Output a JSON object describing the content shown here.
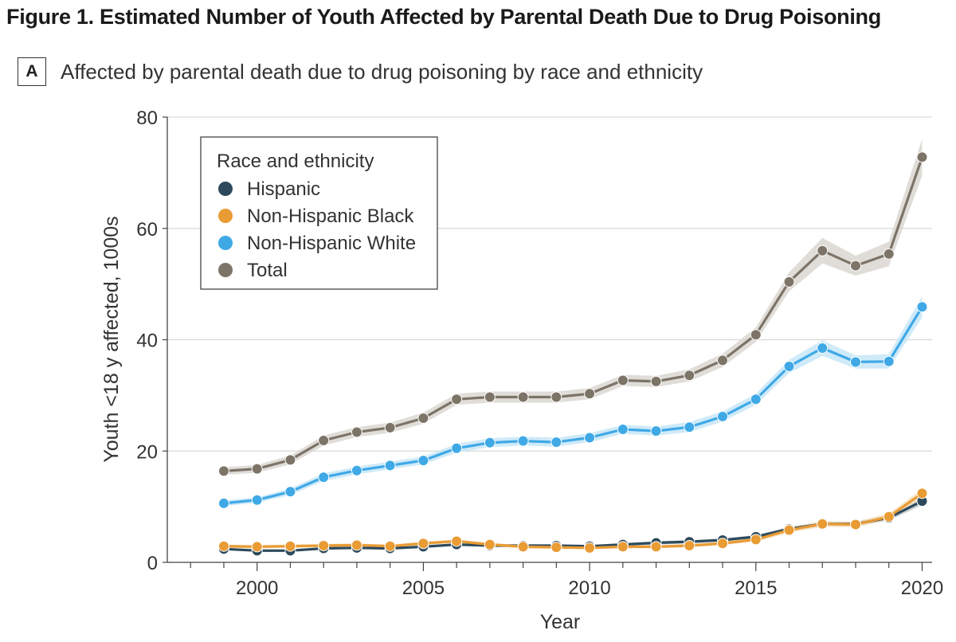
{
  "figure": {
    "title": "Figure 1.  Estimated Number of Youth Affected by Parental Death Due to Drug Poisoning",
    "panel_label": "A",
    "panel_title": "Affected by parental death due to drug poisoning by race and ethnicity"
  },
  "chart_data": {
    "type": "line",
    "xlabel": "Year",
    "ylabel": "Youth <18 y affected, 1000s",
    "xlim": [
      1997.3,
      2020.3
    ],
    "ylim": [
      0,
      80
    ],
    "x_ticks": [
      2000,
      2005,
      2010,
      2015,
      2020
    ],
    "y_ticks": [
      0,
      20,
      40,
      60,
      80
    ],
    "grid": "horizontal",
    "legend_title": "Race and ethnicity",
    "legend_position": "top-left",
    "x": [
      1999,
      2000,
      2001,
      2002,
      2003,
      2004,
      2005,
      2006,
      2007,
      2008,
      2009,
      2010,
      2011,
      2012,
      2013,
      2014,
      2015,
      2016,
      2017,
      2018,
      2019,
      2020
    ],
    "series": [
      {
        "name": "Total",
        "color": "#7d7468",
        "band_color": "#d6d2cc",
        "values": [
          16.4,
          16.8,
          18.4,
          21.9,
          23.4,
          24.2,
          25.9,
          29.3,
          29.7,
          29.7,
          29.7,
          30.3,
          32.7,
          32.5,
          33.6,
          36.3,
          40.9,
          50.4,
          56.0,
          53.3,
          55.4,
          72.8
        ],
        "band": [
          0.7,
          0.7,
          0.8,
          0.9,
          0.9,
          0.9,
          1.0,
          1.0,
          1.0,
          1.0,
          1.0,
          1.0,
          1.0,
          1.0,
          1.1,
          1.2,
          1.3,
          1.7,
          2.3,
          1.8,
          2.2,
          3.3
        ]
      },
      {
        "name": "Non-Hispanic White",
        "color": "#3fa9e6",
        "band_color": "#bfe3f7",
        "values": [
          10.6,
          11.2,
          12.7,
          15.3,
          16.5,
          17.4,
          18.3,
          20.5,
          21.5,
          21.8,
          21.6,
          22.4,
          23.9,
          23.6,
          24.3,
          26.2,
          29.3,
          35.2,
          38.5,
          36.0,
          36.1,
          45.9
        ],
        "band": [
          0.5,
          0.5,
          0.6,
          0.7,
          0.7,
          0.7,
          0.7,
          0.8,
          0.8,
          0.8,
          0.8,
          0.8,
          0.8,
          0.8,
          0.9,
          0.9,
          1.0,
          1.2,
          1.4,
          1.2,
          1.3,
          1.9
        ]
      },
      {
        "name": "Non-Hispanic Black",
        "color": "#e99b34",
        "band_color": "#f6ddb8",
        "values": [
          2.9,
          2.8,
          2.9,
          3.0,
          3.1,
          2.9,
          3.4,
          3.8,
          3.2,
          2.8,
          2.7,
          2.6,
          2.8,
          2.8,
          3.0,
          3.4,
          4.1,
          5.8,
          6.9,
          6.8,
          8.2,
          12.4
        ],
        "band": [
          0.3,
          0.3,
          0.3,
          0.3,
          0.3,
          0.3,
          0.3,
          0.3,
          0.3,
          0.3,
          0.3,
          0.3,
          0.3,
          0.3,
          0.3,
          0.3,
          0.4,
          0.5,
          0.5,
          0.5,
          0.6,
          0.8
        ]
      },
      {
        "name": "Hispanic",
        "color": "#2d4a5c",
        "band_color": "#b9c4ca",
        "values": [
          2.4,
          2.1,
          2.1,
          2.5,
          2.6,
          2.5,
          2.8,
          3.2,
          3.0,
          3.0,
          3.0,
          2.9,
          3.2,
          3.5,
          3.7,
          4.0,
          4.6,
          6.0,
          6.9,
          6.9,
          8.0,
          11.0
        ],
        "band": [
          0.2,
          0.2,
          0.2,
          0.2,
          0.2,
          0.2,
          0.2,
          0.2,
          0.2,
          0.2,
          0.2,
          0.2,
          0.2,
          0.3,
          0.3,
          0.3,
          0.3,
          0.4,
          0.4,
          0.4,
          0.5,
          0.7
        ]
      }
    ],
    "legend_order": [
      "Hispanic",
      "Non-Hispanic Black",
      "Non-Hispanic White",
      "Total"
    ]
  }
}
